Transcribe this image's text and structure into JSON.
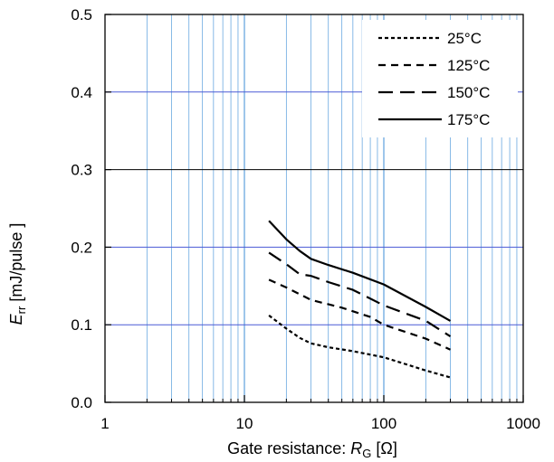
{
  "chart_data": {
    "type": "line",
    "title": "",
    "xlabel": "Gate resistance: R_G [Ω]",
    "xlabel_parts": {
      "prefix": "Gate resistance: ",
      "symbol": "R",
      "subscript": "G",
      "suffix": " [Ω]"
    },
    "ylabel": "E_rr [mJ/pulse ]",
    "ylabel_parts": {
      "symbol": "E",
      "subscript": "rr",
      "suffix": " [mJ/pulse ]"
    },
    "x_scale": "log",
    "xlim": [
      1,
      1000
    ],
    "ylim": [
      0,
      0.5
    ],
    "x_ticks": [
      "1",
      "10",
      "100",
      "1000"
    ],
    "y_ticks": [
      "0.0",
      "0.1",
      "0.2",
      "0.3",
      "0.4",
      "0.5"
    ],
    "grid": true,
    "legend_position": "top-right",
    "colors": {
      "major_grid": "#4a5ad6",
      "minor_grid": "#6aa8e0",
      "frame": "#000000",
      "series": "#000000"
    },
    "series": [
      {
        "name": "25°C",
        "dash": "dotted",
        "x": [
          15,
          20,
          25,
          30,
          40,
          60,
          100,
          200,
          300
        ],
        "y": [
          0.112,
          0.095,
          0.083,
          0.076,
          0.071,
          0.066,
          0.058,
          0.041,
          0.032
        ]
      },
      {
        "name": "125°C",
        "dash": "short-dash",
        "x": [
          15,
          20,
          30,
          50,
          80,
          100,
          200,
          300
        ],
        "y": [
          0.158,
          0.148,
          0.132,
          0.122,
          0.11,
          0.1,
          0.082,
          0.068
        ]
      },
      {
        "name": "150°C",
        "dash": "long-dash",
        "x": [
          15,
          20,
          25,
          30,
          40,
          60,
          100,
          200,
          300
        ],
        "y": [
          0.193,
          0.178,
          0.165,
          0.163,
          0.155,
          0.145,
          0.125,
          0.105,
          0.085
        ]
      },
      {
        "name": "175°C",
        "dash": "solid",
        "x": [
          15,
          20,
          25,
          30,
          40,
          60,
          100,
          200,
          300
        ],
        "y": [
          0.234,
          0.21,
          0.195,
          0.185,
          0.177,
          0.167,
          0.152,
          0.123,
          0.105
        ]
      }
    ]
  }
}
